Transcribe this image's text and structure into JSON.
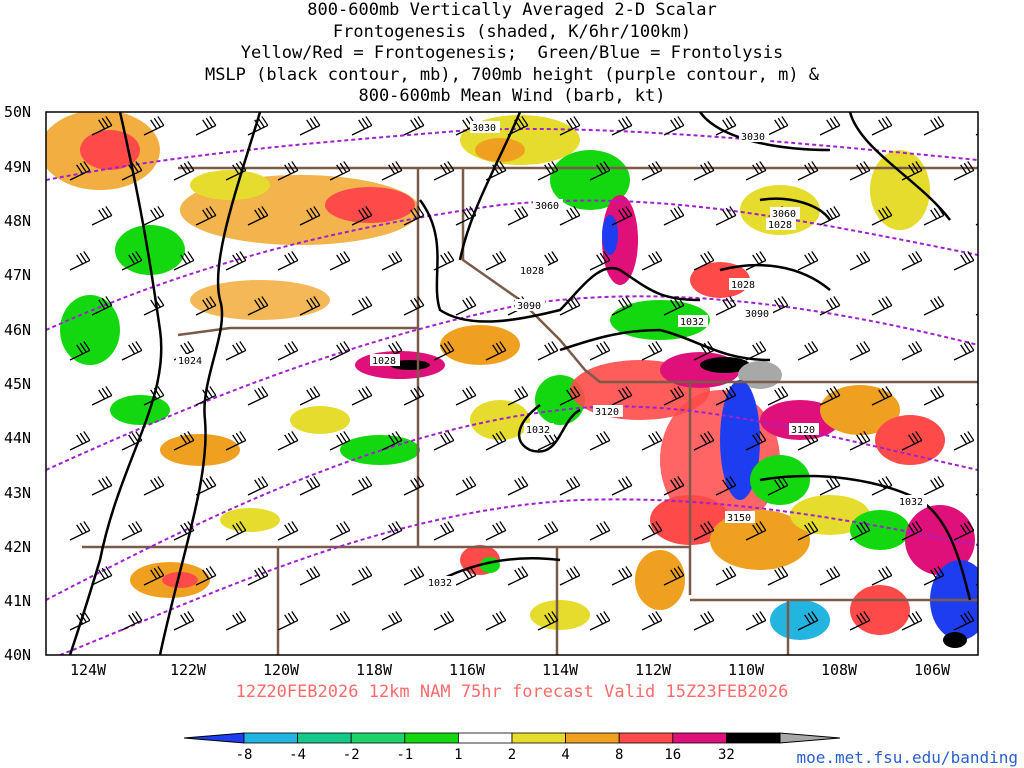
{
  "title_lines": [
    "800-600mb Vertically Averaged 2-D Scalar",
    "Frontogenesis (shaded, K/6hr/100km)",
    "Yellow/Red = Frontogenesis;  Green/Blue = Frontolysis",
    "MSLP (black contour, mb), 700mb height (purple contour, m) &",
    "800-600mb Mean Wind (barb, kt)"
  ],
  "lat_labels": [
    "50N",
    "49N",
    "48N",
    "47N",
    "46N",
    "45N",
    "44N",
    "43N",
    "42N",
    "41N",
    "40N"
  ],
  "lon_labels": [
    "124W",
    "122W",
    "120W",
    "118W",
    "116W",
    "114W",
    "112W",
    "110W",
    "108W",
    "106W"
  ],
  "mslp_labels": [
    "1024",
    "1028",
    "1028",
    "1028",
    "1028",
    "1032",
    "1032",
    "1032",
    "1032"
  ],
  "height_labels": [
    "3030",
    "3030",
    "3060",
    "3060",
    "3090",
    "3090",
    "3120",
    "3120",
    "3150"
  ],
  "footer": "12Z20FEB2026 12km NAM 75hr forecast Valid 15Z23FEB2026",
  "site": "moe.met.fsu.edu/banding",
  "colorbar": {
    "ticks": [
      "-8",
      "-4",
      "-2",
      "-1",
      "1",
      "2",
      "4",
      "8",
      "16",
      "32"
    ],
    "colors": [
      "#1f3df0",
      "#23b4e0",
      "#16c98a",
      "#1fd36a",
      "#14d80f",
      "#ffffff",
      "#e6dc2e",
      "#f0a020",
      "#ff4a4a",
      "#e0107a",
      "#000000",
      "#a8a8a8"
    ]
  }
}
